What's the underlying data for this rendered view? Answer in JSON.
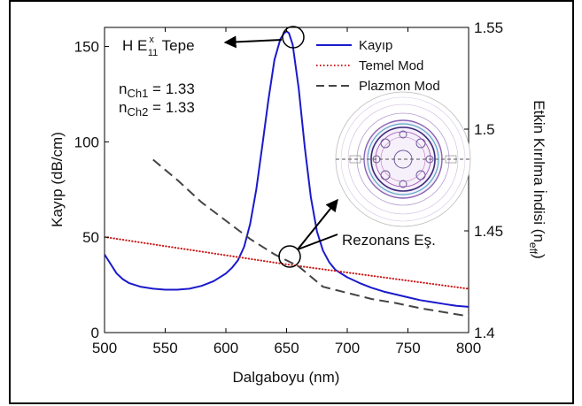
{
  "chart_data": {
    "type": "line",
    "xlabel": "Dalgaboyu (nm)",
    "ylabel_left": "Kayıp (dB/cm)",
    "ylabel_right": "Etkin Kırılma İndisi (n",
    "ylabel_right_sub": "eff",
    "ylabel_right_close": ")",
    "xlim": [
      500,
      800
    ],
    "ylim_left": [
      0,
      160
    ],
    "ylim_right": [
      1.4,
      1.55
    ],
    "xticks": [
      "500",
      "550",
      "600",
      "650",
      "700",
      "750",
      "800"
    ],
    "xtick_values": [
      500,
      550,
      600,
      650,
      700,
      750,
      800
    ],
    "yticks_left": [
      "0",
      "50",
      "100",
      "150"
    ],
    "ytick_values_left": [
      0,
      50,
      100,
      150
    ],
    "yticks_right": [
      "1.4",
      "1.45",
      "1.5",
      "1.55"
    ],
    "ytick_values_right": [
      1.4,
      1.45,
      1.5,
      1.55
    ],
    "grid": false,
    "legend_position": "top-right",
    "series": [
      {
        "name": "Kayıp",
        "axis": "left",
        "color": "#1a1acc",
        "dash": "solid",
        "x": [
          500,
          505,
          510,
          515,
          520,
          530,
          540,
          550,
          560,
          570,
          580,
          590,
          600,
          605,
          610,
          615,
          620,
          625,
          630,
          635,
          640,
          645,
          648,
          650,
          652,
          655,
          660,
          665,
          670,
          675,
          680,
          685,
          690,
          700,
          710,
          720,
          730,
          740,
          750,
          760,
          770,
          780,
          790,
          800
        ],
        "y": [
          41,
          36,
          31,
          28,
          26,
          24,
          23,
          22.5,
          22.5,
          23,
          24.5,
          27,
          31,
          34,
          38,
          45,
          57,
          75,
          98,
          122,
          143,
          154,
          157,
          158,
          157,
          151,
          128,
          97,
          71,
          53,
          43,
          37,
          33,
          29,
          26,
          23.5,
          21.5,
          20,
          18.5,
          17,
          16,
          15,
          14,
          13.5
        ]
      },
      {
        "name": "Temel Mod",
        "axis": "right",
        "color": "#cc1a1a",
        "dash": "dotted",
        "x": [
          500,
          550,
          600,
          650,
          700,
          750,
          800
        ],
        "y": [
          1.447,
          1.4425,
          1.438,
          1.4335,
          1.4295,
          1.4255,
          1.4215
        ]
      },
      {
        "name": "Plazmon Mod",
        "axis": "right",
        "color": "#444444",
        "dash": "dashed",
        "x": [
          540,
          560,
          580,
          600,
          620,
          640,
          660,
          680,
          700,
          720,
          740,
          760,
          780,
          800
        ],
        "y": [
          1.485,
          1.475,
          1.464,
          1.455,
          1.446,
          1.4385,
          1.4325,
          1.4225,
          1.4195,
          1.4165,
          1.4145,
          1.412,
          1.41,
          1.408
        ]
      }
    ],
    "annotations": {
      "peak_label": "H E",
      "peak_sup": "x",
      "peak_sub": "11",
      "peak_suffix": " Tepe",
      "n1_label": "n",
      "n1_sub": "Ch1",
      "n1_value": " = 1.33",
      "n2_label": "n",
      "n2_sub": "Ch2",
      "n2_value": " = 1.33",
      "resonance_label": "Rezonans Eş."
    }
  }
}
